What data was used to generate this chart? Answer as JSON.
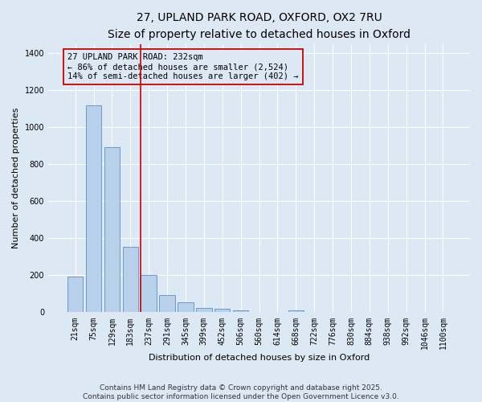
{
  "title_line1": "27, UPLAND PARK ROAD, OXFORD, OX2 7RU",
  "title_line2": "Size of property relative to detached houses in Oxford",
  "xlabel": "Distribution of detached houses by size in Oxford",
  "ylabel": "Number of detached properties",
  "categories": [
    "21sqm",
    "75sqm",
    "129sqm",
    "183sqm",
    "237sqm",
    "291sqm",
    "345sqm",
    "399sqm",
    "452sqm",
    "506sqm",
    "560sqm",
    "614sqm",
    "668sqm",
    "722sqm",
    "776sqm",
    "830sqm",
    "884sqm",
    "938sqm",
    "992sqm",
    "1046sqm",
    "1100sqm"
  ],
  "values": [
    195,
    1120,
    895,
    355,
    200,
    95,
    55,
    22,
    18,
    12,
    0,
    0,
    12,
    0,
    0,
    0,
    0,
    0,
    0,
    0,
    0
  ],
  "bar_color": "#b8d0ea",
  "bar_edge_color": "#5b8ec4",
  "vline_color": "#cc0000",
  "annotation_text": "27 UPLAND PARK ROAD: 232sqm\n← 86% of detached houses are smaller (2,524)\n14% of semi-detached houses are larger (402) →",
  "annotation_box_color": "#cc0000",
  "ylim": [
    0,
    1450
  ],
  "yticks": [
    0,
    200,
    400,
    600,
    800,
    1000,
    1200,
    1400
  ],
  "background_color": "#dde8f5",
  "grid_color": "#ffffff",
  "footer_line1": "Contains HM Land Registry data © Crown copyright and database right 2025.",
  "footer_line2": "Contains public sector information licensed under the Open Government Licence v3.0.",
  "title_fontsize": 10,
  "subtitle_fontsize": 9,
  "axis_label_fontsize": 8,
  "tick_fontsize": 7,
  "annotation_fontsize": 7.5,
  "footer_fontsize": 6.5
}
